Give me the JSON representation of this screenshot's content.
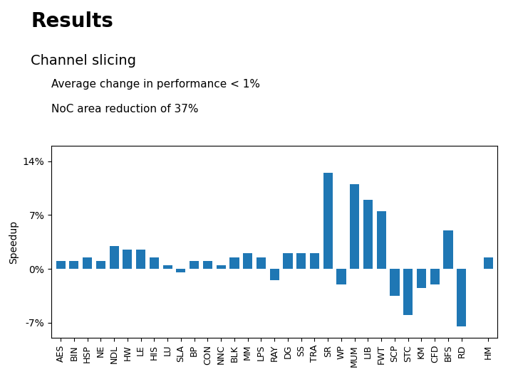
{
  "chart_data": {
    "type": "bar",
    "title": "Results",
    "annotations": [
      "Channel slicing",
      "Average change in performance < 1%",
      "NoC area reduction of 37%"
    ],
    "categories": [
      "AES",
      "BIN",
      "HSP",
      "NE",
      "NDL",
      "HW",
      "LE",
      "HIS",
      "LU",
      "SLA",
      "BP",
      "CON",
      "NNC",
      "BLK",
      "MM",
      "LPS",
      "RAY",
      "DG",
      "SS",
      "TRA",
      "SR",
      "WP",
      "MUM",
      "LIB",
      "FWT",
      "SCP",
      "STC",
      "KM",
      "CFD",
      "BFS",
      "RD",
      null,
      "HM"
    ],
    "values": [
      1.0,
      1.0,
      1.5,
      1.0,
      3.0,
      2.5,
      2.5,
      1.5,
      0.5,
      -0.5,
      1.0,
      1.0,
      0.5,
      1.5,
      2.0,
      1.5,
      -1.5,
      2.0,
      2.0,
      2.0,
      12.5,
      -2.0,
      11.0,
      9.0,
      7.5,
      -3.5,
      -6.0,
      -2.5,
      -2.0,
      5.0,
      -7.5,
      0.0,
      1.5
    ],
    "ylabel": "Speedup",
    "ylim": [
      -9,
      16
    ],
    "yticks": [
      {
        "value": -7,
        "label": "-7%"
      },
      {
        "value": 0,
        "label": "0%"
      },
      {
        "value": 7,
        "label": "7%"
      },
      {
        "value": 14,
        "label": "14%"
      }
    ]
  }
}
